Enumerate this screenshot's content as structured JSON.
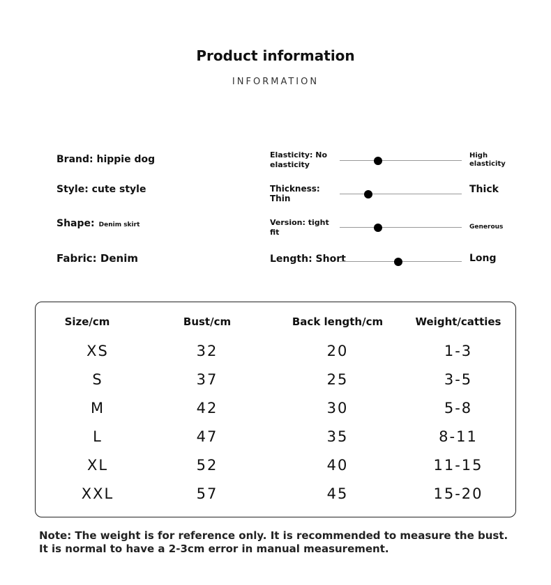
{
  "header": {
    "title": "Product information",
    "subtitle": "INFORMATION"
  },
  "attributes": [
    {
      "label": "Brand:",
      "value": "hippie dog"
    },
    {
      "label": "Style:",
      "value": "cute style"
    },
    {
      "label": "Shape:",
      "value": "Denim skirt"
    },
    {
      "label": "Fabric:",
      "value": "Denim"
    }
  ],
  "scales": [
    {
      "left": "Elasticity: No elasticity",
      "right": "High elasticity"
    },
    {
      "left": "Thickness: Thin",
      "right": "Thick"
    },
    {
      "left": "Version: tight fit",
      "right": "Generous"
    },
    {
      "left": "Length: Short",
      "right": "Long"
    }
  ],
  "table": {
    "columns": [
      "Size/cm",
      "Bust/cm",
      "Back length/cm",
      "Weight/catties"
    ],
    "rows": [
      [
        "XS",
        "32",
        "20",
        "1-3"
      ],
      [
        "S",
        "37",
        "25",
        "3-5"
      ],
      [
        "M",
        "42",
        "30",
        "5-8"
      ],
      [
        "L",
        "47",
        "35",
        "8-11"
      ],
      [
        "XL",
        "52",
        "40",
        "11-15"
      ],
      [
        "XXL",
        "57",
        "45",
        "15-20"
      ]
    ]
  },
  "note": "Note: The weight is for reference only. It is recommended to measure the bust. It is normal to have a 2-3cm error in manual measurement."
}
